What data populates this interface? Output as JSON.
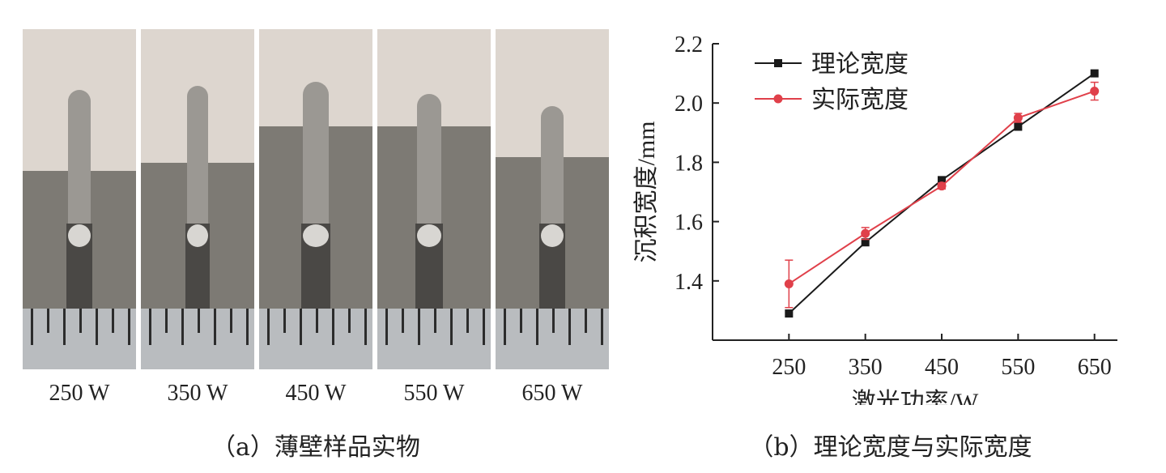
{
  "panel_a": {
    "caption": "（a）薄壁样品实物",
    "samples": [
      {
        "label": "250 W",
        "icon": "thin-wall-sample-250w"
      },
      {
        "label": "350 W",
        "icon": "thin-wall-sample-350w"
      },
      {
        "label": "450 W",
        "icon": "thin-wall-sample-450w"
      },
      {
        "label": "550 W",
        "icon": "thin-wall-sample-550w"
      },
      {
        "label": "650 W",
        "icon": "thin-wall-sample-650w"
      }
    ]
  },
  "panel_b": {
    "caption": "（b）理论宽度与实际宽度"
  },
  "chart_data": {
    "type": "line",
    "title": "",
    "xlabel": "激光功率/W",
    "ylabel": "沉积宽度/mm",
    "x": [
      250,
      350,
      450,
      550,
      650
    ],
    "xlim": [
      150,
      680
    ],
    "ylim": [
      1.2,
      2.2
    ],
    "yticks": [
      "1.4",
      "1.6",
      "1.8",
      "2.0",
      "2.2"
    ],
    "xticks": [
      "250",
      "350",
      "450",
      "550",
      "650"
    ],
    "grid": false,
    "legend_position": "top-left",
    "series": [
      {
        "name": "理论宽度",
        "color": "#1a1a1a",
        "marker": "square",
        "values": [
          1.29,
          1.53,
          1.74,
          1.92,
          2.1
        ]
      },
      {
        "name": "实际宽度",
        "color": "#e0404a",
        "marker": "circle",
        "values": [
          1.39,
          1.56,
          1.72,
          1.95,
          2.04
        ],
        "errors": [
          0.08,
          0.02,
          0.01,
          0.015,
          0.03
        ]
      }
    ]
  }
}
